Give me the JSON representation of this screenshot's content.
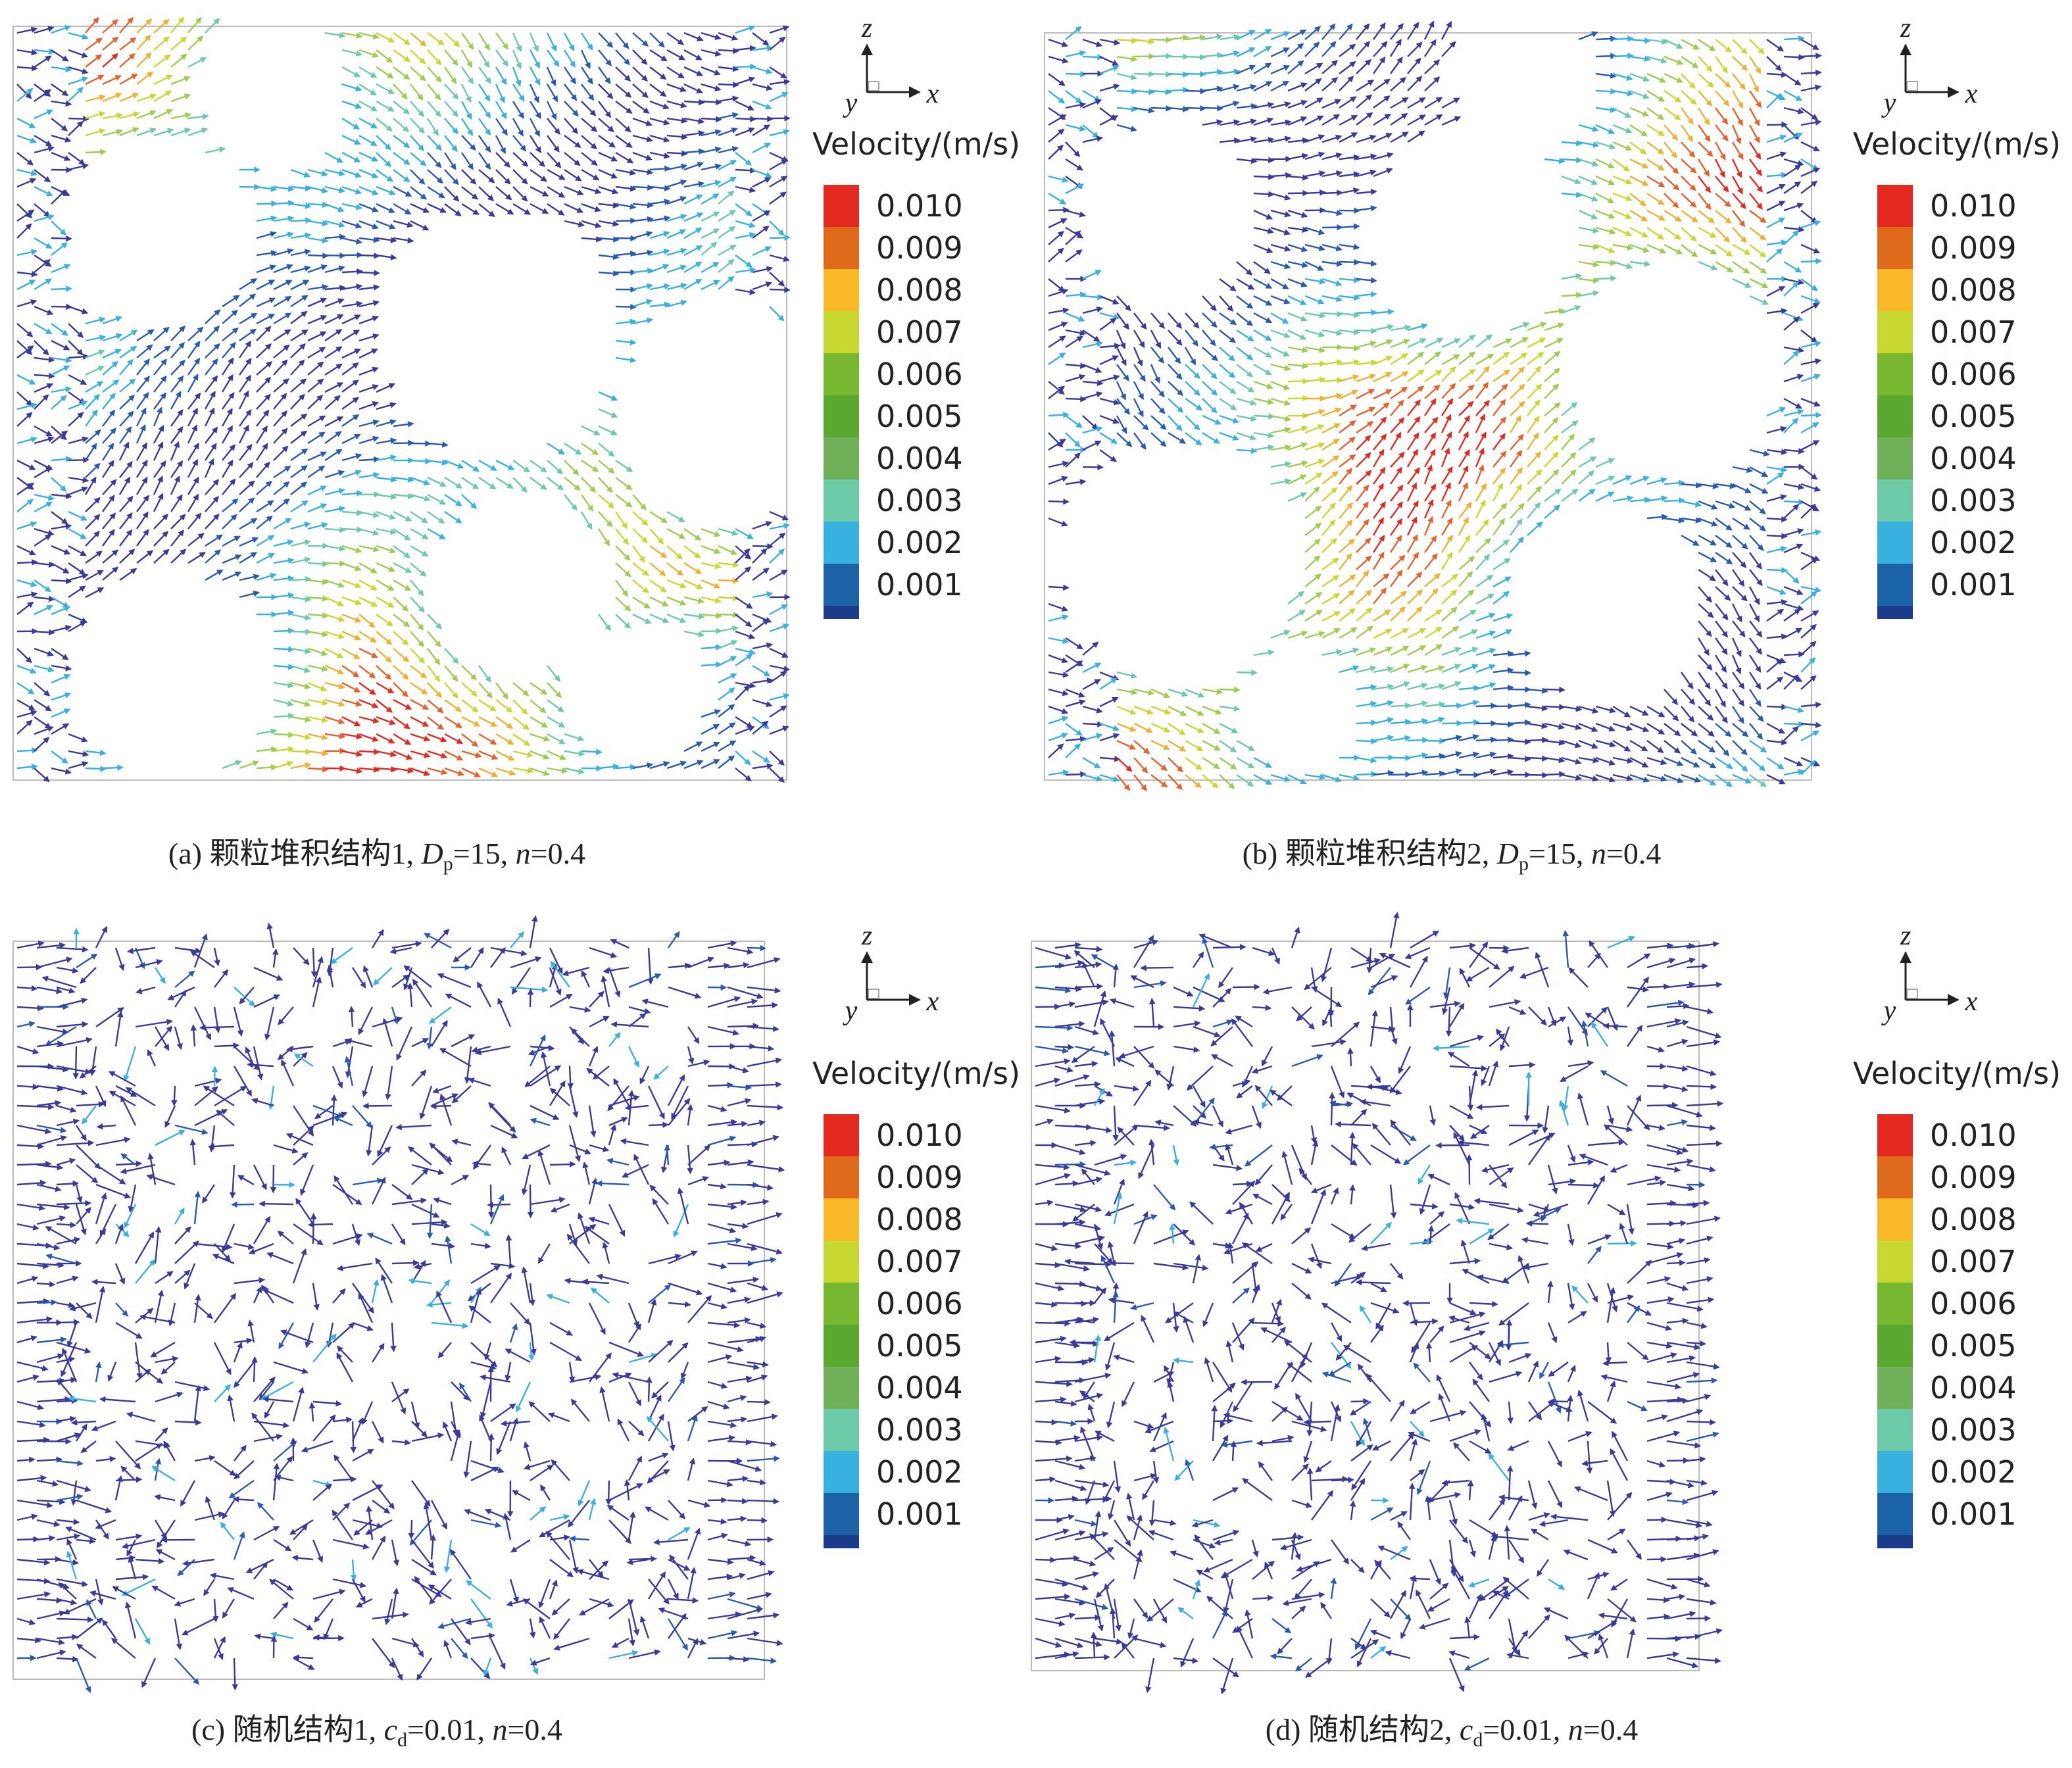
{
  "panels": [
    {
      "caption": {
        "label": "(a) 颗粒堆积结构1, ",
        "symbol1": "D",
        "sub1": "p",
        "eq1": "=15, ",
        "symbol2": "n",
        "eq2": "=0.4"
      },
      "axes": {
        "z": "z",
        "y": "y",
        "x": "x"
      },
      "legend_title": "Velocity/(m/s)",
      "legend_ticks": [
        "0.010",
        "0.009",
        "0.008",
        "0.007",
        "0.006",
        "0.005",
        "0.004",
        "0.003",
        "0.002",
        "0.001"
      ]
    },
    {
      "caption": {
        "label": "(b) 颗粒堆积结构2, ",
        "symbol1": "D",
        "sub1": "p",
        "eq1": "=15, ",
        "symbol2": "n",
        "eq2": "=0.4"
      },
      "axes": {
        "z": "z",
        "y": "y",
        "x": "x"
      },
      "legend_title": "Velocity/(m/s)",
      "legend_ticks": [
        "0.010",
        "0.009",
        "0.008",
        "0.007",
        "0.006",
        "0.005",
        "0.004",
        "0.003",
        "0.002",
        "0.001"
      ]
    },
    {
      "caption": {
        "label": "(c) 随机结构1, ",
        "symbol1": "c",
        "sub1": "d",
        "eq1": "=0.01, ",
        "symbol2": "n",
        "eq2": "=0.4"
      },
      "axes": {
        "z": "z",
        "y": "y",
        "x": "x"
      },
      "legend_title": "Velocity/(m/s)",
      "legend_ticks": [
        "0.010",
        "0.009",
        "0.008",
        "0.007",
        "0.006",
        "0.005",
        "0.004",
        "0.003",
        "0.002",
        "0.001"
      ]
    },
    {
      "caption": {
        "label": "(d) 随机结构2, ",
        "symbol1": "c",
        "sub1": "d",
        "eq1": "=0.01, ",
        "symbol2": "n",
        "eq2": "=0.4"
      },
      "axes": {
        "z": "z",
        "y": "y",
        "x": "x"
      },
      "legend_title": "Velocity/(m/s)",
      "legend_ticks": [
        "0.010",
        "0.009",
        "0.008",
        "0.007",
        "0.006",
        "0.005",
        "0.004",
        "0.003",
        "0.002",
        "0.001"
      ]
    }
  ]
}
